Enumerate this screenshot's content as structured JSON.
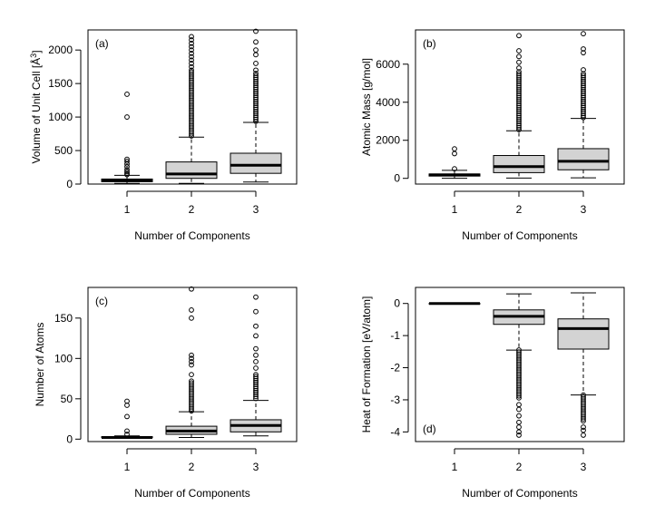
{
  "chart_data": [
    {
      "type": "boxplot",
      "panel_label": "(a)",
      "xlabel": "Number of Components",
      "ylabel_main": "Volume of Unit Cell [",
      "ylabel_unit": "Å",
      "ylabel_sup": "3",
      "ylabel_end": "]",
      "ylim": [
        0,
        2300
      ],
      "yticks": [
        0,
        500,
        1000,
        1500,
        2000
      ],
      "categories": [
        "1",
        "2",
        "3"
      ],
      "boxes": [
        {
          "category": "1",
          "whisker_low": 10,
          "q1": 35,
          "median": 55,
          "q3": 75,
          "whisker_high": 130,
          "outliers": [
            140,
            160,
            185,
            215,
            260,
            300,
            340,
            370,
            1000,
            1340
          ]
        },
        {
          "category": "2",
          "whisker_low": 10,
          "q1": 85,
          "median": 150,
          "q3": 330,
          "whisker_high": 700,
          "outlier_band": [
            700,
            1700
          ],
          "outliers": [
            1750,
            1800,
            1850,
            1900,
            1950,
            2000,
            2050,
            2100,
            2150,
            2200
          ]
        },
        {
          "category": "3",
          "whisker_low": 30,
          "q1": 160,
          "median": 280,
          "q3": 460,
          "whisker_high": 920,
          "outlier_band": [
            920,
            1650
          ],
          "outliers": [
            1700,
            1800,
            1930,
            2000,
            2120,
            2280
          ]
        }
      ]
    },
    {
      "type": "boxplot",
      "panel_label": "(b)",
      "xlabel": "Number of Components",
      "ylabel_main": "Atomic Mass [g/mol]",
      "ylim": [
        -300,
        7800
      ],
      "yticks": [
        0,
        2000,
        4000,
        6000
      ],
      "categories": [
        "1",
        "2",
        "3"
      ],
      "boxes": [
        {
          "category": "1",
          "whisker_low": 5,
          "q1": 120,
          "median": 180,
          "q3": 230,
          "whisker_high": 420,
          "outliers": [
            500,
            1300,
            1550
          ]
        },
        {
          "category": "2",
          "whisker_low": 15,
          "q1": 300,
          "median": 620,
          "q3": 1200,
          "whisker_high": 2500,
          "outlier_band": [
            2500,
            5600
          ],
          "outliers": [
            5800,
            6100,
            6400,
            6700,
            7500
          ]
        },
        {
          "category": "3",
          "whisker_low": 30,
          "q1": 450,
          "median": 900,
          "q3": 1560,
          "whisker_high": 3150,
          "outlier_band": [
            3150,
            5500
          ],
          "outliers": [
            5700,
            6600,
            6800,
            7600
          ]
        }
      ]
    },
    {
      "type": "boxplot",
      "panel_label": "(c)",
      "xlabel": "Number of Components",
      "ylabel_main": "Number of Atoms",
      "ylim": [
        -3,
        188
      ],
      "yticks": [
        0,
        50,
        100,
        150
      ],
      "categories": [
        "1",
        "2",
        "3"
      ],
      "boxes": [
        {
          "category": "1",
          "whisker_low": 1,
          "q1": 2,
          "median": 2,
          "q3": 3,
          "whisker_high": 4,
          "outliers": [
            6,
            10,
            28,
            42,
            47
          ]
        },
        {
          "category": "2",
          "whisker_low": 2,
          "q1": 6,
          "median": 10,
          "q3": 16,
          "whisker_high": 34,
          "outlier_band": [
            34,
            72
          ],
          "outliers": [
            80,
            92,
            96,
            100,
            104,
            150,
            160,
            186
          ]
        },
        {
          "category": "3",
          "whisker_low": 4,
          "q1": 9,
          "median": 17,
          "q3": 24,
          "whisker_high": 48,
          "outlier_band": [
            48,
            80
          ],
          "outliers": [
            88,
            96,
            104,
            112,
            128,
            140,
            158,
            176
          ]
        }
      ]
    },
    {
      "type": "boxplot",
      "panel_label": "(d)",
      "panel_label_position": "bottom-left",
      "xlabel": "Number of Components",
      "ylabel_main": "Heat of Formation [eV/atom]",
      "ylim": [
        -4.3,
        0.5
      ],
      "yticks": [
        0,
        -1,
        -2,
        -3,
        -4
      ],
      "categories": [
        "1",
        "2",
        "3"
      ],
      "boxes": [
        {
          "category": "1",
          "whisker_low": 0,
          "q1": 0,
          "median": 0,
          "q3": 0,
          "whisker_high": 0,
          "outliers": []
        },
        {
          "category": "2",
          "whisker_low": -1.45,
          "q1": -0.65,
          "median": -0.4,
          "q3": -0.2,
          "whisker_high": 0.3,
          "outlier_band": [
            -3.0,
            -1.45
          ],
          "outliers": [
            -3.15,
            -3.3,
            -3.5,
            -3.7,
            -3.85,
            -4.0,
            -4.1
          ]
        },
        {
          "category": "3",
          "whisker_low": -2.85,
          "q1": -1.42,
          "median": -0.78,
          "q3": -0.48,
          "whisker_high": 0.33,
          "outlier_band": [
            -3.7,
            -2.85
          ],
          "outliers": [
            -3.85,
            -3.95,
            -4.1
          ]
        }
      ]
    }
  ]
}
